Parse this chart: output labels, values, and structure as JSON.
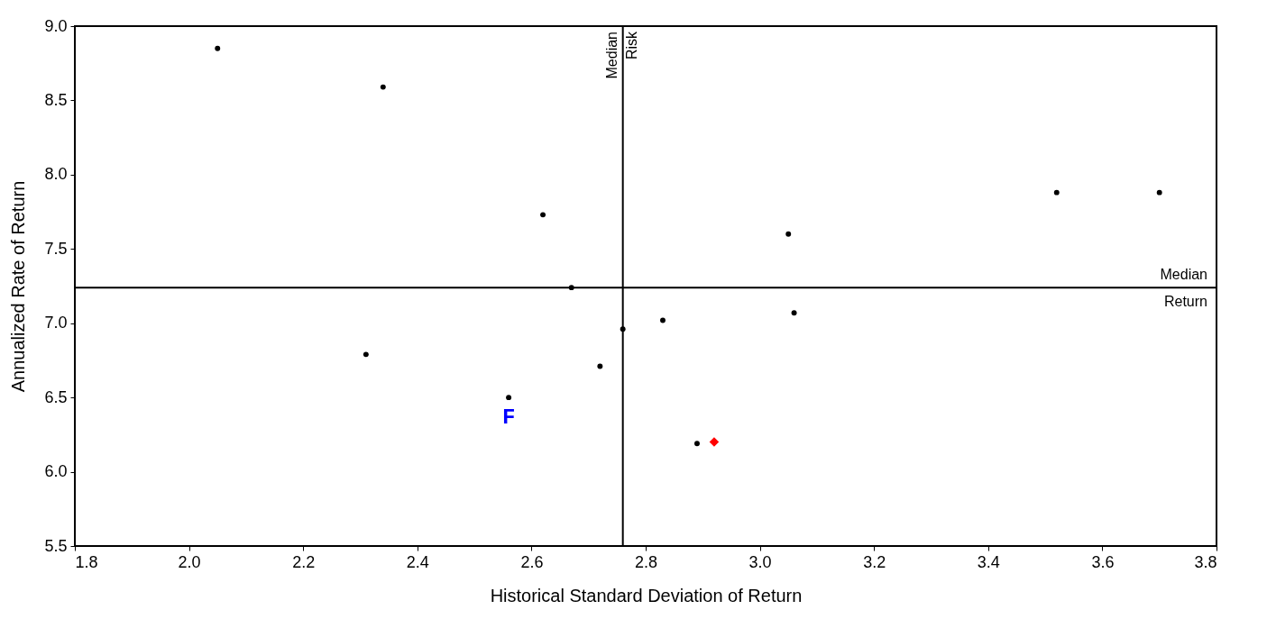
{
  "chart_data": {
    "type": "scatter",
    "xlabel": "Historical Standard Deviation of Return",
    "ylabel": "Annualized Rate of Return",
    "series": [
      {
        "color": "#000000",
        "marker": "circle",
        "x": [
          2.05,
          2.34,
          2.62,
          2.67,
          2.31,
          2.56,
          2.72,
          2.76,
          2.83,
          2.89,
          3.05,
          3.06,
          3.52,
          3.7
        ],
        "values": [
          8.85,
          8.59,
          7.73,
          7.24,
          6.79,
          6.5,
          6.71,
          6.96,
          7.02,
          6.19,
          7.6,
          7.07,
          7.88,
          7.88
        ]
      },
      {
        "color": "#ff0000",
        "marker": "diamond",
        "x": [
          2.92
        ],
        "values": [
          6.2
        ]
      }
    ],
    "xlim": [
      1.8,
      3.8
    ],
    "xticks": [
      1.8,
      {
        "value": 2,
        "label": "2.0"
      },
      2.2,
      2.4,
      2.6,
      2.8,
      {
        "value": 3,
        "label": "3.0"
      },
      3.2,
      3.4,
      3.6,
      3.8
    ],
    "ylim": [
      5.5,
      9.0
    ],
    "yticks": [
      5.5,
      {
        "value": 6,
        "label": "6.0"
      },
      6.5,
      {
        "value": 7,
        "label": "7.0"
      },
      7.5,
      {
        "value": 8,
        "label": "8.0"
      },
      8.5,
      {
        "value": 9,
        "label": "9.0"
      }
    ],
    "ref_lines": [
      {
        "axis": "x",
        "value": 2.76,
        "label": "Median Risk"
      },
      {
        "axis": "y",
        "value": 7.24,
        "label": "Median Return"
      }
    ],
    "annotations": [
      {
        "text": "F",
        "x": 2.56,
        "y": 6.5
      }
    ],
    "grid": false
  }
}
